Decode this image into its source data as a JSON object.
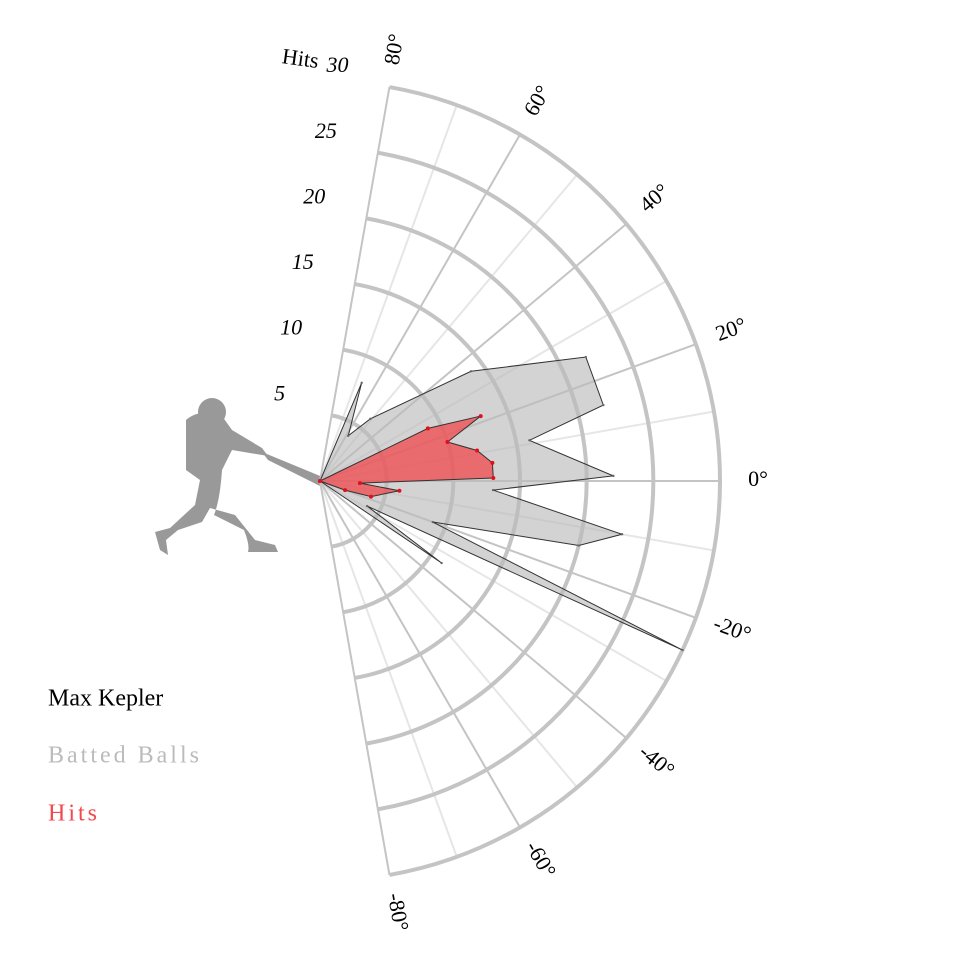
{
  "chart_data": {
    "type": "radial-area",
    "ylabel": "Hits",
    "ylim": [
      0,
      30
    ],
    "yticks": [
      5,
      10,
      15,
      20,
      25,
      30
    ],
    "xlim": [
      -80,
      80
    ],
    "xticks": [
      {
        "value": 80,
        "label": "80°"
      },
      {
        "value": 60,
        "label": "60°"
      },
      {
        "value": 40,
        "label": "40°"
      },
      {
        "value": 20,
        "label": "20°"
      },
      {
        "value": 0,
        "label": "0°"
      },
      {
        "value": -20,
        "label": "-20°"
      },
      {
        "value": -40,
        "label": "-40°"
      },
      {
        "value": -60,
        "label": "-60°"
      },
      {
        "value": -80,
        "label": "-80°"
      }
    ],
    "player": "Max Kepler",
    "series": [
      {
        "name": "Batted Balls",
        "color": "#bbbbbb",
        "x": [
          90,
          67,
          58,
          51,
          36,
          25,
          15,
          11,
          1,
          -3,
          -10,
          -14,
          -20,
          -25,
          -28,
          -34,
          -90
        ],
        "values": [
          0,
          8,
          4,
          6,
          14,
          22,
          22,
          16,
          22,
          13,
          23,
          20,
          9,
          30,
          4,
          11,
          0
        ]
      },
      {
        "name": "Hits",
        "color": "#f0484c",
        "x": [
          90,
          26,
          22,
          17,
          11,
          6,
          1,
          -3,
          -7,
          -17,
          -20,
          -90
        ],
        "values": [
          0,
          9,
          13,
          10,
          12,
          13,
          13,
          3,
          6,
          4,
          2,
          0
        ]
      }
    ]
  }
}
